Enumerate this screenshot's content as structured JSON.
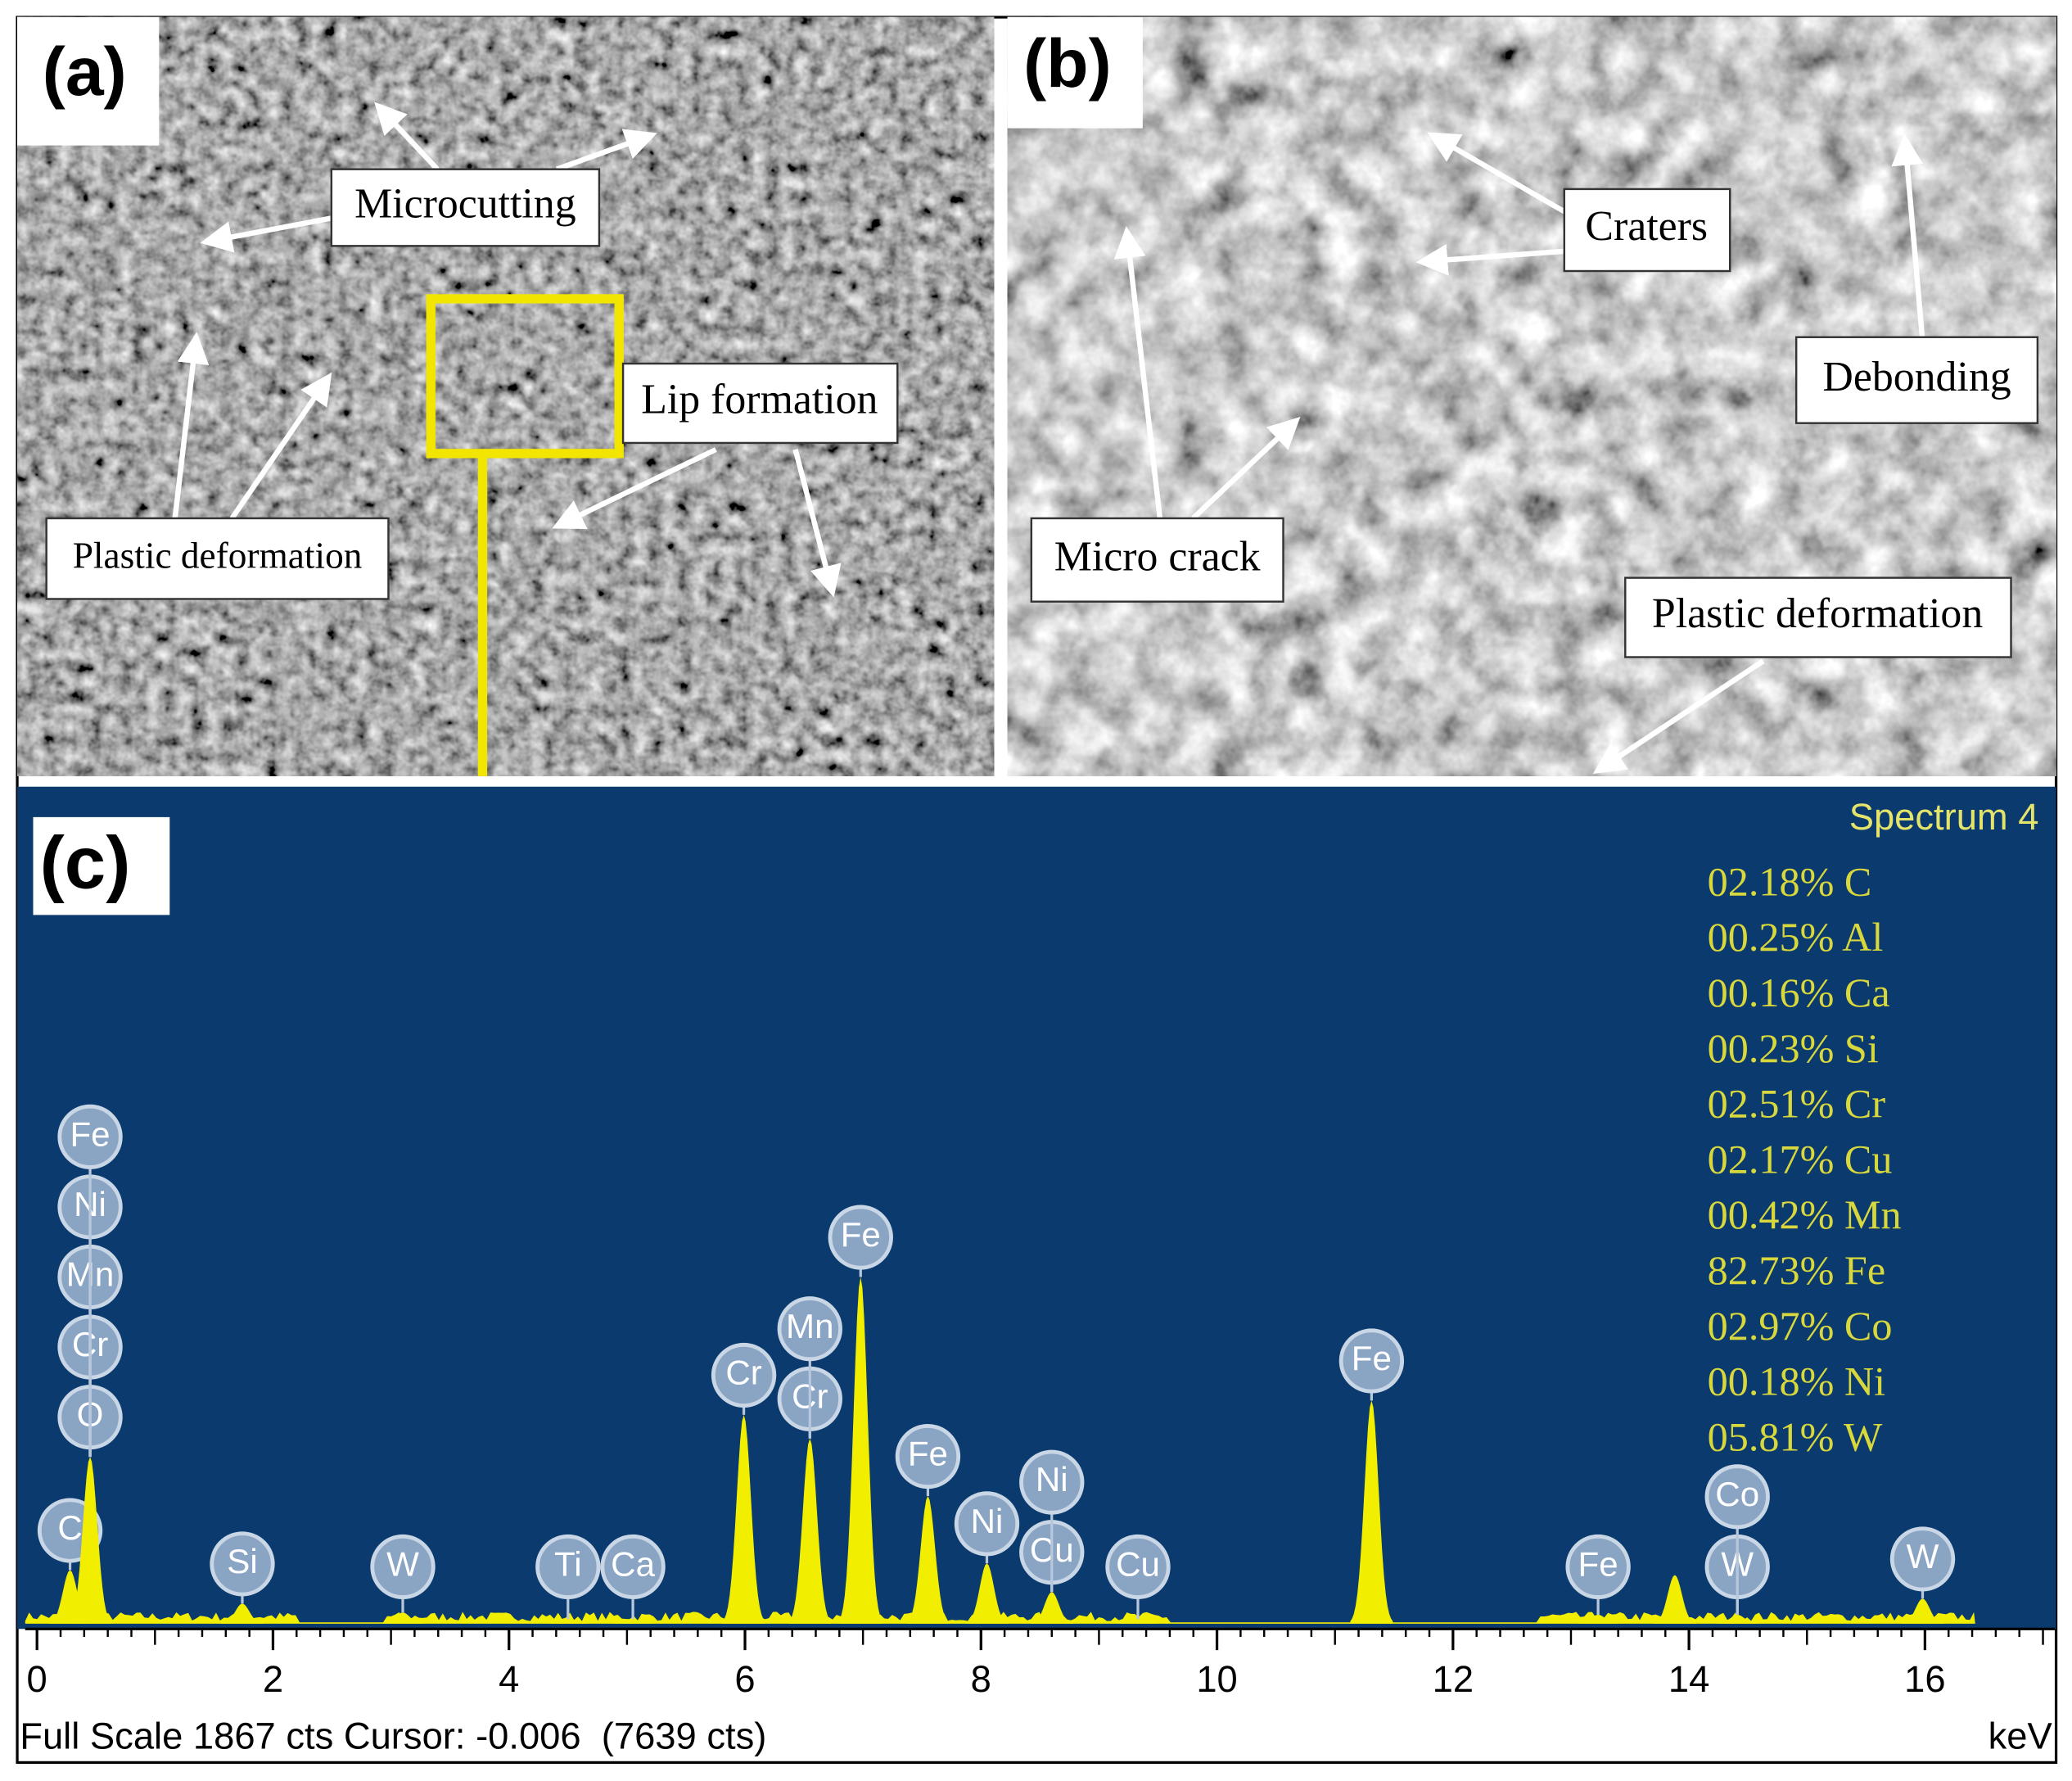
{
  "figure": {
    "a": {
      "label": "(a)",
      "annotations": [
        "Microcutting",
        "Lip formation",
        "Plastic deformation"
      ]
    },
    "b": {
      "label": "(b)",
      "annotations": [
        "Craters",
        "Debonding",
        "Micro crack",
        "Plastic deformation"
      ]
    },
    "c": {
      "label": "(c)",
      "spectrum_title": "Spectrum 4",
      "composition": [
        "02.18% C",
        "00.25% Al",
        "00.16% Ca",
        "00.23% Si",
        "02.51% Cr",
        "02.17% Cu",
        "00.42% Mn",
        "82.73% Fe",
        "02.97% Co",
        "00.18% Ni",
        "05.81% W"
      ],
      "footer": "Full Scale 1867 cts Cursor: -0.006  (7639 cts)"
    }
  },
  "chart_data": {
    "type": "peaks",
    "x_label": "keV",
    "color": "#f2ee00",
    "xlim": [
      -0.1,
      17.1
    ],
    "xticks": [
      0,
      2,
      4,
      6,
      8,
      10,
      12,
      14,
      16
    ],
    "ylim": [
      0,
      1867
    ],
    "peaks": [
      {
        "energy": 0.28,
        "counts": 120,
        "labels": [
          "C"
        ]
      },
      {
        "energy": 0.45,
        "counts": 374,
        "labels": [
          "O",
          "Cr",
          "Mn",
          "Ni",
          "Fe"
        ]
      },
      {
        "energy": 1.74,
        "counts": 45,
        "labels": [
          "Si"
        ]
      },
      {
        "energy": 3.1,
        "counts": 25,
        "labels": [
          "W"
        ]
      },
      {
        "energy": 4.5,
        "counts": 10,
        "labels": [
          "Ti"
        ]
      },
      {
        "energy": 5.05,
        "counts": 10,
        "labels": [
          "Ca"
        ]
      },
      {
        "energy": 5.99,
        "counts": 468,
        "labels": [
          "Cr"
        ]
      },
      {
        "energy": 6.55,
        "counts": 415,
        "labels": [
          "Cr",
          "Mn"
        ]
      },
      {
        "energy": 6.98,
        "counts": 777,
        "labels": [
          "Fe"
        ]
      },
      {
        "energy": 7.55,
        "counts": 286,
        "labels": [
          "Fe"
        ]
      },
      {
        "energy": 8.05,
        "counts": 135,
        "labels": [
          "Ni"
        ]
      },
      {
        "energy": 8.6,
        "counts": 71,
        "labels": [
          "Cu",
          "Ni"
        ]
      },
      {
        "energy": 9.33,
        "counts": 10,
        "labels": [
          "Cu"
        ]
      },
      {
        "energy": 11.31,
        "counts": 500,
        "labels": [
          "Fe"
        ]
      },
      {
        "energy": 13.23,
        "counts": 20,
        "labels": [
          "Fe"
        ]
      },
      {
        "energy": 13.88,
        "counts": 109,
        "labels": []
      },
      {
        "energy": 14.41,
        "counts": 20,
        "labels": [
          "W",
          "Co"
        ]
      },
      {
        "energy": 15.98,
        "counts": 56,
        "labels": [
          "W"
        ]
      }
    ]
  }
}
